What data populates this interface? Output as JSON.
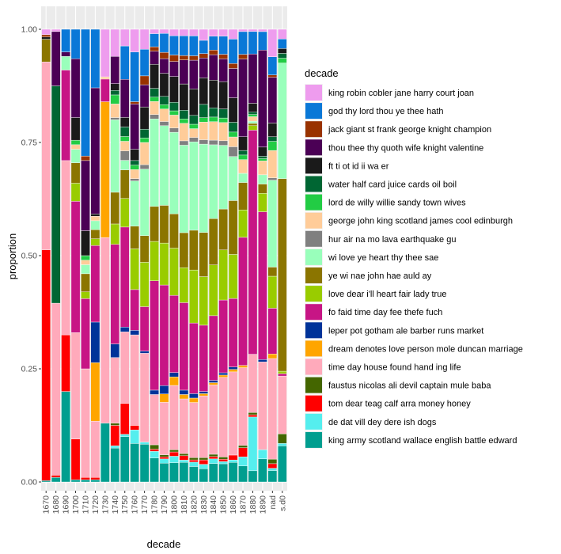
{
  "chart_data": {
    "type": "bar",
    "stacked": true,
    "position": "fill",
    "xlabel": "decade",
    "ylabel": "proportion",
    "ylim": [
      0,
      1
    ],
    "y_ticks": [
      "0.00",
      "0.25",
      "0.50",
      "0.75",
      "1.00"
    ],
    "y_tick_values": [
      0,
      0.25,
      0.5,
      0.75,
      1
    ],
    "grid": true,
    "legend_position": "right",
    "legend_title": "decade",
    "categories": [
      "1670",
      "1680",
      "1690",
      "1700",
      "1710",
      "1720",
      "1730",
      "1740",
      "1750",
      "1760",
      "1770",
      "1780",
      "1790",
      "1800",
      "1810",
      "1820",
      "1830",
      "1840",
      "1850",
      "1860",
      "1870",
      "1880",
      "1890",
      "nad",
      "s.d0"
    ],
    "series": [
      {
        "name": "king army scotland wallace english battle edward",
        "color": "#009E8F",
        "values": [
          0.003,
          0.01,
          0.2,
          0.005,
          0.005,
          0.005,
          0.13,
          0.075,
          0.095,
          0.085,
          0.085,
          0.055,
          0.045,
          0.045,
          0.045,
          0.035,
          0.03,
          0.04,
          0.04,
          0.04,
          0.035,
          0.025,
          0.05,
          0.025,
          0.075
        ]
      },
      {
        "name": "de dat vill dey dere ish dogs",
        "color": "#55EEEE",
        "values": [
          0,
          0,
          0,
          0,
          0,
          0,
          0,
          0.005,
          0.005,
          0.03,
          0.005,
          0.015,
          0.01,
          0.015,
          0.005,
          0.01,
          0.01,
          0.01,
          0.005,
          0.005,
          0.02,
          0.12,
          0.02,
          0.005,
          0.005
        ]
      },
      {
        "name": "tom dear teag calf arra money honey",
        "color": "#FF0000",
        "values": [
          0.51,
          0.005,
          0.125,
          0.09,
          0.005,
          0.005,
          0,
          0.045,
          0.065,
          0.01,
          0,
          0.005,
          0.005,
          0.01,
          0.01,
          0.005,
          0.01,
          0.005,
          0.005,
          0.01,
          0.02,
          0.005,
          0,
          0.01,
          0
        ]
      },
      {
        "name": "faustus nicolas ali devil captain mule baba",
        "color": "#446600",
        "values": [
          0,
          0,
          0,
          0,
          0,
          0,
          0,
          0.005,
          0,
          0,
          0,
          0.01,
          0.005,
          0.005,
          0.005,
          0.005,
          0.005,
          0.005,
          0.005,
          0,
          0.005,
          0.005,
          0,
          0.01,
          0.02
        ]
      },
      {
        "name": "time day house found hand ing life",
        "color": "#FFAABB",
        "values": [
          0.415,
          0.38,
          0.385,
          0.235,
          0.24,
          0.125,
          0.41,
          0.145,
          0.15,
          0.2,
          0.2,
          0.115,
          0.125,
          0.15,
          0.125,
          0.125,
          0.14,
          0.15,
          0.175,
          0.17,
          0.17,
          0.13,
          0.19,
          0.22,
          0.12
        ]
      },
      {
        "name": "dream denotes love person mole duncan marriage",
        "color": "#FFA500",
        "values": [
          0,
          0,
          0,
          0,
          0,
          0.13,
          0.3,
          0,
          0,
          0,
          0,
          0,
          0.02,
          0.02,
          0.01,
          0.01,
          0.005,
          0.005,
          0.005,
          0.005,
          0.005,
          0,
          0,
          0.01,
          0
        ]
      },
      {
        "name": "leper pot gotham ale barber runs market",
        "color": "#003399",
        "values": [
          0,
          0,
          0,
          0,
          0,
          0.09,
          0,
          0.03,
          0.01,
          0.01,
          0.005,
          0.01,
          0.02,
          0.01,
          0.01,
          0.01,
          0.005,
          0.005,
          0.005,
          0.005,
          0,
          0,
          0.005,
          0,
          0
        ]
      },
      {
        "name": "fo faid time day fee thefe fuch",
        "color": "#C71585",
        "values": [
          0,
          0,
          0.2,
          0.29,
          0.155,
          0.17,
          0.05,
          0.22,
          0.21,
          0.09,
          0.1,
          0.25,
          0.24,
          0.18,
          0.2,
          0.16,
          0.15,
          0.14,
          0.16,
          0.14,
          0.28,
          0.5,
          0.32,
          0.1,
          0.005
        ]
      },
      {
        "name": "love dear i'll heart fair lady true",
        "color": "#99CC00",
        "values": [
          0,
          0,
          0,
          0.04,
          0.015,
          0.015,
          0,
          0.045,
          0.06,
          0.09,
          0.1,
          0.09,
          0.1,
          0.11,
          0.08,
          0.12,
          0.11,
          0.11,
          0.11,
          0.09,
          0.06,
          0.01,
          0.04,
          0.07,
          0.005
        ]
      },
      {
        "name": "ye wi nae john hae auld ay",
        "color": "#8B7500",
        "values": [
          0.05,
          0,
          0,
          0.045,
          0.04,
          0.02,
          0,
          0.07,
          0.06,
          0.05,
          0.06,
          0.08,
          0.09,
          0.08,
          0.08,
          0.09,
          0.1,
          0.1,
          0.09,
          0.11,
          0.06,
          0.005,
          0.02,
          0.02,
          0.4
        ]
      },
      {
        "name": "wi love ye heart thy thee sae",
        "color": "#99FFBB",
        "values": [
          0,
          0,
          0.03,
          0.03,
          0.02,
          0.02,
          0,
          0.16,
          0.02,
          0.1,
          0.15,
          0.2,
          0.19,
          0.19,
          0.2,
          0.2,
          0.2,
          0.16,
          0.14,
          0.09,
          0.02,
          0.005,
          0.02,
          0.19,
          0.24
        ]
      },
      {
        "name": "hur air na mo lava earthquake gu",
        "color": "#808080",
        "values": [
          0,
          0,
          0,
          0,
          0,
          0,
          0,
          0.005,
          0.02,
          0.005,
          0.01,
          0.01,
          0.01,
          0.01,
          0.01,
          0.01,
          0.01,
          0.01,
          0.01,
          0.02,
          0,
          0,
          0,
          0.005,
          0
        ]
      },
      {
        "name": "george john king scotland james cool edinburgh",
        "color": "#FFCC99",
        "values": [
          0,
          0,
          0,
          0.01,
          0.01,
          0.01,
          0.005,
          0.03,
          0.02,
          0.02,
          0.05,
          0.03,
          0.03,
          0.03,
          0.04,
          0.02,
          0.04,
          0.04,
          0.04,
          0.02,
          0.03,
          0.01,
          0.03,
          0.06,
          0
        ]
      },
      {
        "name": "lord de willy willie sandy town wives",
        "color": "#22CC44",
        "values": [
          0,
          0,
          0,
          0.01,
          0.01,
          0,
          0,
          0.02,
          0.01,
          0.01,
          0.01,
          0.01,
          0.01,
          0.01,
          0.01,
          0.01,
          0.01,
          0.01,
          0.01,
          0.01,
          0.01,
          0.005,
          0.005,
          0.02,
          0.01
        ]
      },
      {
        "name": "water half card juice cards oil boil",
        "color": "#006633",
        "values": [
          0,
          0.48,
          0,
          0,
          0,
          0,
          0,
          0.01,
          0.02,
          0.01,
          0.02,
          0.02,
          0.02,
          0.02,
          0.02,
          0.02,
          0.03,
          0.02,
          0.02,
          0.02,
          0.01,
          0.005,
          0.005,
          0.01,
          0.01
        ]
      },
      {
        "name": "ft ti ot id ii wa er",
        "color": "#1A1A1A",
        "values": [
          0.005,
          0,
          0,
          0.05,
          0.055,
          0.005,
          0,
          0.015,
          0.02,
          0.025,
          0.05,
          0.055,
          0.055,
          0.06,
          0.06,
          0.06,
          0.06,
          0.06,
          0.06,
          0.05,
          0.03,
          0.02,
          0.02,
          0.03,
          0.01
        ]
      },
      {
        "name": "thou thee thy quoth wife knight valentine",
        "color": "#4B0055",
        "values": [
          0,
          0.12,
          0.01,
          0.13,
          0.155,
          0.28,
          0,
          0.06,
          0.08,
          0.1,
          0.05,
          0.03,
          0.035,
          0.035,
          0.055,
          0.065,
          0.045,
          0.055,
          0.05,
          0.06,
          0.17,
          0.11,
          0.21,
          0.1,
          0
        ]
      },
      {
        "name": "jack giant st frank george knight champion",
        "color": "#993300",
        "values": [
          0.005,
          0,
          0,
          0,
          0.01,
          0,
          0,
          0,
          0,
          0.005,
          0.02,
          0.01,
          0.015,
          0.015,
          0.01,
          0.01,
          0.01,
          0.01,
          0.01,
          0.01,
          0.01,
          0,
          0,
          0.005,
          0
        ]
      },
      {
        "name": "god thy lord thou ye thee hath",
        "color": "#0A78D7",
        "values": [
          0,
          0,
          0.05,
          0.065,
          0.28,
          0.13,
          0,
          0,
          0.07,
          0.11,
          0.06,
          0.03,
          0.045,
          0.045,
          0.045,
          0.045,
          0.03,
          0.03,
          0.04,
          0.05,
          0.05,
          0.05,
          0.04,
          0.04,
          0.02
        ]
      },
      {
        "name": "king robin cobler jane harry court joan",
        "color": "#EE9CEE",
        "values": [
          0.012,
          0.005,
          0,
          0,
          0,
          0,
          0.105,
          0.06,
          0.035,
          0.05,
          0.045,
          0.01,
          0.01,
          0.015,
          0.015,
          0.015,
          0.025,
          0.015,
          0.015,
          0.02,
          0.005,
          0.005,
          0.005,
          0.06,
          0.02
        ]
      }
    ]
  }
}
